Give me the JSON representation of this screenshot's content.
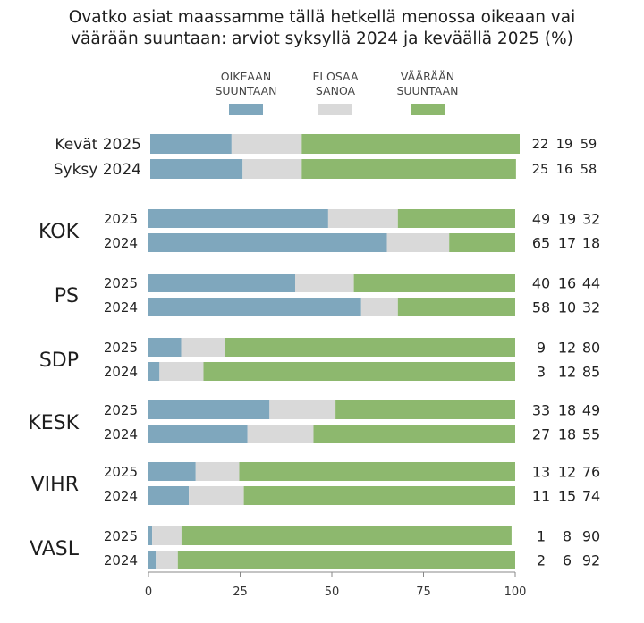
{
  "chart_data": {
    "type": "bar",
    "stacked": true,
    "orientation": "horizontal",
    "title_lines": [
      "Ovatko asiat maassamme tällä hetkellä menossa oikeaan vai",
      "väärään suuntaan: arviot syksyllä 2024 ja keväällä 2025 (%)"
    ],
    "legend": {
      "position": "top",
      "entries": [
        {
          "label": [
            "OIKEAAN",
            "SUUNTAAN"
          ],
          "color": "#7fa7bd"
        },
        {
          "label": [
            "EI OSAA",
            "SANOA"
          ],
          "color": "#d9d9d9"
        },
        {
          "label": [
            "VÄÄRÄÄN",
            "SUUNTAAN"
          ],
          "color": "#8db86e"
        }
      ]
    },
    "xlim": [
      0,
      100
    ],
    "xticks": [
      "0",
      "25",
      "50",
      "75",
      "100"
    ],
    "grid": false,
    "groups": [
      {
        "label": "",
        "rows": [
          {
            "label": "Kevät 2025",
            "values": [
              22,
              19,
              59
            ],
            "labels": [
              "22",
              "19",
              "59"
            ]
          },
          {
            "label": "Syksy 2024",
            "values": [
              25,
              16,
              58
            ],
            "labels": [
              "25",
              "16",
              "58"
            ]
          }
        ]
      },
      {
        "label": "KOK",
        "rows": [
          {
            "label": "2025",
            "values": [
              49,
              19,
              32
            ],
            "labels": [
              "49",
              "19",
              "32"
            ]
          },
          {
            "label": "2024",
            "values": [
              65,
              17,
              18
            ],
            "labels": [
              "65",
              "17",
              "18"
            ]
          }
        ]
      },
      {
        "label": "PS",
        "rows": [
          {
            "label": "2025",
            "values": [
              40,
              16,
              44
            ],
            "labels": [
              "40",
              "16",
              "44"
            ]
          },
          {
            "label": "2024",
            "values": [
              58,
              10,
              32
            ],
            "labels": [
              "58",
              "10",
              "32"
            ]
          }
        ]
      },
      {
        "label": "SDP",
        "rows": [
          {
            "label": "2025",
            "values": [
              9,
              12,
              80
            ],
            "labels": [
              "9",
              "12",
              "80"
            ]
          },
          {
            "label": "2024",
            "values": [
              3,
              12,
              85
            ],
            "labels": [
              "3",
              "12",
              "85"
            ]
          }
        ]
      },
      {
        "label": "KESK",
        "rows": [
          {
            "label": "2025",
            "values": [
              33,
              18,
              49
            ],
            "labels": [
              "33",
              "18",
              "49"
            ]
          },
          {
            "label": "2024",
            "values": [
              27,
              18,
              55
            ],
            "labels": [
              "27",
              "18",
              "55"
            ]
          }
        ]
      },
      {
        "label": "VIHR",
        "rows": [
          {
            "label": "2025",
            "values": [
              13,
              12,
              76
            ],
            "labels": [
              "13",
              "12",
              "76"
            ]
          },
          {
            "label": "2024",
            "values": [
              11,
              15,
              74
            ],
            "labels": [
              "11",
              "15",
              "74"
            ]
          }
        ]
      },
      {
        "label": "VASL",
        "rows": [
          {
            "label": "2025",
            "values": [
              1,
              8,
              90
            ],
            "labels": [
              "1",
              "8",
              "90"
            ]
          },
          {
            "label": "2024",
            "values": [
              2,
              6,
              92
            ],
            "labels": [
              "2",
              "6",
              "92"
            ]
          }
        ]
      }
    ]
  }
}
